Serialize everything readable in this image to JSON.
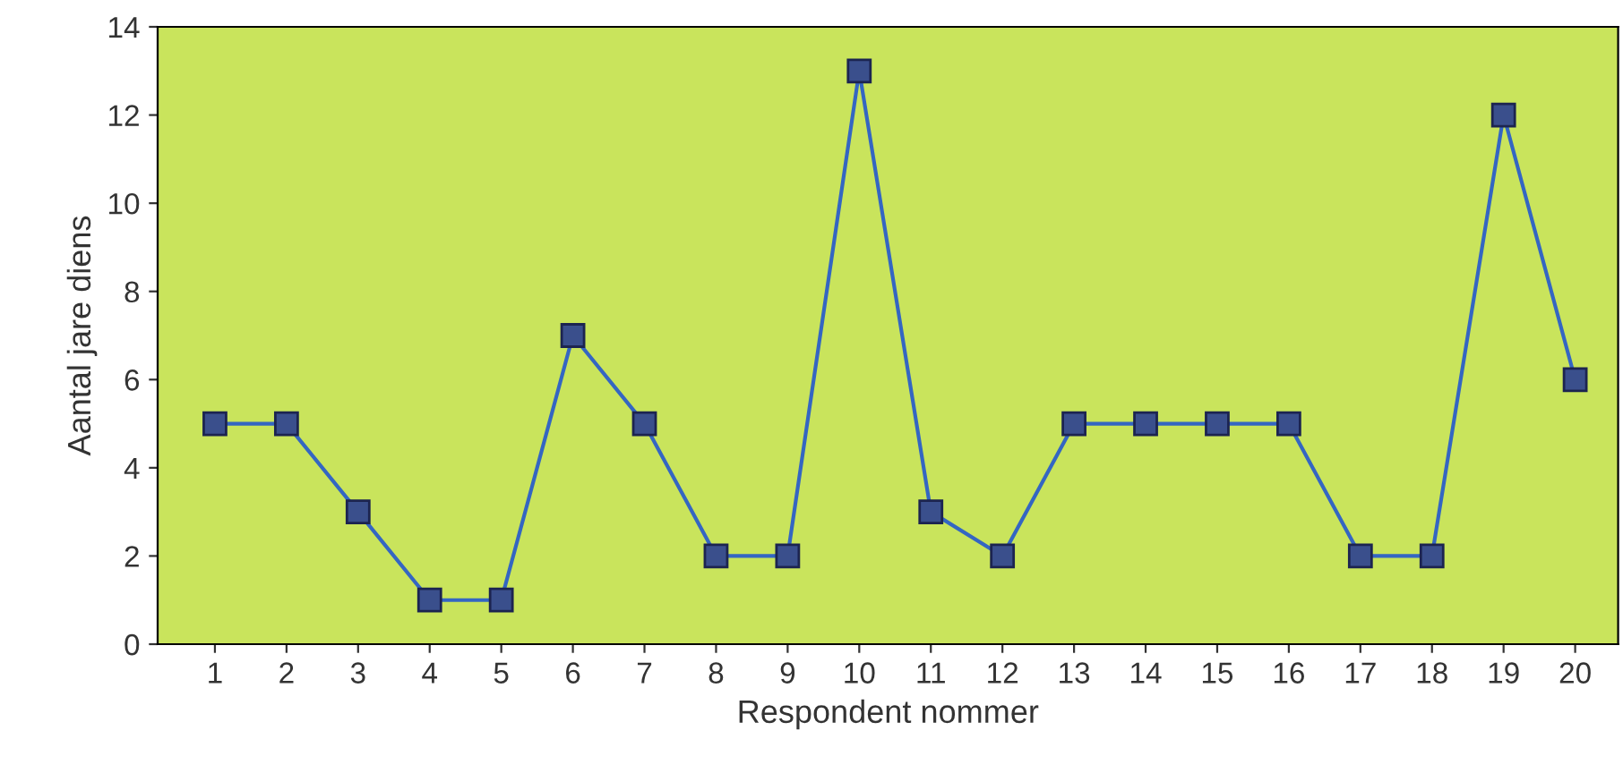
{
  "chart_data": {
    "type": "line",
    "xlabel": "Respondent nommer",
    "ylabel": "Aantal jare diens",
    "categories": [
      "1",
      "2",
      "3",
      "4",
      "5",
      "6",
      "7",
      "8",
      "9",
      "10",
      "11",
      "12",
      "13",
      "14",
      "15",
      "16",
      "17",
      "18",
      "19",
      "20"
    ],
    "series": [
      {
        "color": "#3466c2",
        "values": [
          5,
          5,
          3,
          1,
          1,
          7,
          5,
          2,
          2,
          13,
          3,
          2,
          5,
          5,
          5,
          5,
          2,
          2,
          12,
          6
        ]
      }
    ],
    "ylim": [
      0,
      14
    ],
    "yticks": [
      0,
      2,
      4,
      6,
      8,
      10,
      12,
      14
    ],
    "grid": false,
    "legend": false,
    "marker": "square",
    "line_style": "solid"
  }
}
